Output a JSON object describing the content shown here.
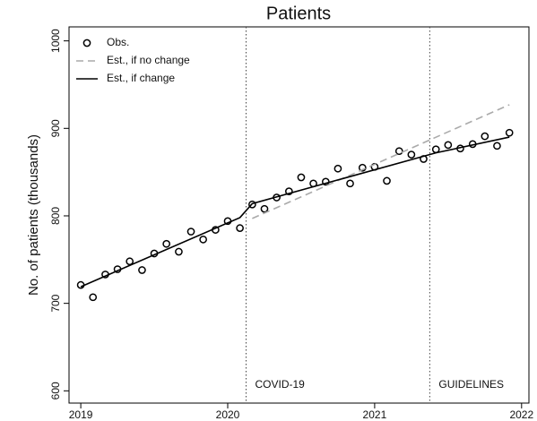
{
  "chart_data": {
    "type": "line",
    "title": "Patients",
    "y_label": "No. of patients (thousands)",
    "xlim": [
      2018.92,
      2022.05
    ],
    "ylim": [
      586,
      1016
    ],
    "xticks": [
      2019,
      2020,
      2021,
      2022
    ],
    "yticks": [
      600,
      700,
      800,
      900,
      1000
    ],
    "legend": "top-left",
    "series": [
      {
        "name": "Obs.",
        "style": "markers",
        "color": "#000000",
        "x": [
          2019.0,
          2019.083,
          2019.167,
          2019.25,
          2019.333,
          2019.417,
          2019.5,
          2019.583,
          2019.667,
          2019.75,
          2019.833,
          2019.917,
          2020.0,
          2020.083,
          2020.167,
          2020.25,
          2020.333,
          2020.417,
          2020.5,
          2020.583,
          2020.667,
          2020.75,
          2020.833,
          2020.917,
          2021.0,
          2021.083,
          2021.167,
          2021.25,
          2021.333,
          2021.417,
          2021.5,
          2021.583,
          2021.667,
          2021.75,
          2021.833,
          2021.917
        ],
        "values": [
          721,
          707,
          733,
          739,
          748,
          738,
          757,
          768,
          759,
          782,
          773,
          784,
          794,
          786,
          813,
          808,
          821,
          828,
          844,
          837,
          839,
          854,
          837,
          855,
          856,
          840,
          874,
          870,
          865,
          876,
          881,
          877,
          882,
          891,
          880,
          895
        ]
      },
      {
        "name": "Est., if no change",
        "style": "dashed",
        "color": "#aaaaaa",
        "x": [
          2020.167,
          2021.917
        ],
        "values": [
          797,
          927
        ]
      },
      {
        "name": "Est., if change",
        "style": "solid",
        "color": "#000000",
        "x": [
          2019.0,
          2020.083,
          2020.167,
          2021.417,
          2021.917
        ],
        "values": [
          719,
          798,
          814,
          872,
          890
        ]
      }
    ],
    "vlines": [
      {
        "x": 2020.125,
        "label": "COVID-19"
      },
      {
        "x": 2021.375,
        "label": "GUIDELINES"
      }
    ]
  }
}
